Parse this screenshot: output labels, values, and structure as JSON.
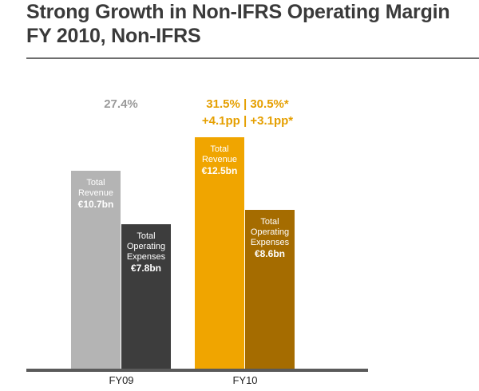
{
  "title_line1": "Strong Growth in Non-IFRS Operating Margin",
  "title_line2": "FY 2010, Non-IFRS",
  "colors": {
    "fy09_revenue": "#b4b4b4",
    "fy09_opex": "#3d3d3d",
    "fy10_revenue": "#f0a500",
    "fy10_opex": "#a56c00",
    "fy09_margin_text": "#9a9a9a",
    "fy10_margin_text": "#e59f00"
  },
  "chart_data": {
    "type": "bar",
    "categories": [
      "FY09",
      "FY10"
    ],
    "series": [
      {
        "name": "Total Revenue",
        "label_line1": "Total",
        "label_line2": "Revenue",
        "values": [
          10.7,
          12.5
        ],
        "value_labels": [
          "€10.7bn",
          "€12.5bn"
        ]
      },
      {
        "name": "Total Operating Expenses",
        "label_line1": "Total",
        "label_line2": "Operating",
        "label_line3": "Expenses",
        "values": [
          7.8,
          8.6
        ],
        "value_labels": [
          "€7.8bn",
          "€8.6bn"
        ]
      }
    ],
    "annotations": {
      "fy09_margin": "27.4%",
      "fy10_margin_line1": "31.5% | 30.5%*",
      "fy10_margin_line2": "+4.1pp | +3.1pp*"
    },
    "unit": "€bn",
    "ylim": [
      0,
      12.5
    ]
  }
}
